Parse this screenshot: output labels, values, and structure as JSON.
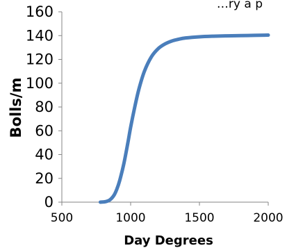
{
  "chart_data": {
    "type": "line",
    "title": "…ry  a p",
    "xlabel": "Day Degrees",
    "ylabel": "Bolls/m",
    "xlim": [
      500,
      2000
    ],
    "ylim": [
      0,
      160
    ],
    "x_ticks": [
      500,
      1000,
      1500,
      2000
    ],
    "y_ticks": [
      0,
      20,
      40,
      60,
      80,
      100,
      120,
      140,
      160
    ],
    "grid": false,
    "legend": "none",
    "line_color": "#4a7ebb",
    "series": [
      {
        "x": [
          780,
          820,
          850,
          880,
          900,
          920,
          950,
          980,
          1000,
          1030,
          1060,
          1100,
          1150,
          1200,
          1250,
          1300,
          1350,
          1400,
          1500,
          1600,
          1700,
          1800,
          1900,
          2000
        ],
        "y": [
          0,
          0.5,
          2,
          6,
          11,
          18,
          32,
          50,
          63,
          80,
          95,
          110,
          122,
          129,
          133,
          135.5,
          137,
          138,
          139,
          139.5,
          139.8,
          140,
          140.2,
          140.4
        ]
      }
    ]
  }
}
